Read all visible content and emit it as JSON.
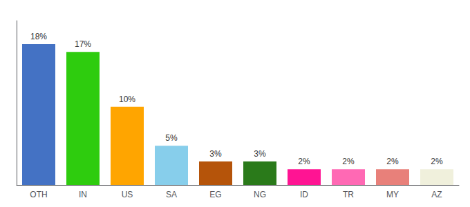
{
  "chart_data": {
    "type": "bar",
    "categories": [
      "OTH",
      "IN",
      "US",
      "SA",
      "EG",
      "NG",
      "ID",
      "TR",
      "MY",
      "AZ"
    ],
    "values": [
      18,
      17,
      10,
      5,
      3,
      3,
      2,
      2,
      2,
      2
    ],
    "value_labels": [
      "18%",
      "17%",
      "10%",
      "5%",
      "3%",
      "3%",
      "2%",
      "2%",
      "2%",
      "2%"
    ],
    "data_labels": true,
    "colors": [
      "#4472c4",
      "#2ecc0e",
      "#ffa500",
      "#87ceeb",
      "#b5540a",
      "#2a7a1a",
      "#ff1493",
      "#ff69b4",
      "#e8807a",
      "#f0f0dc"
    ],
    "ylim": [
      0,
      21
    ],
    "grid": false,
    "tick_labels": "x"
  }
}
